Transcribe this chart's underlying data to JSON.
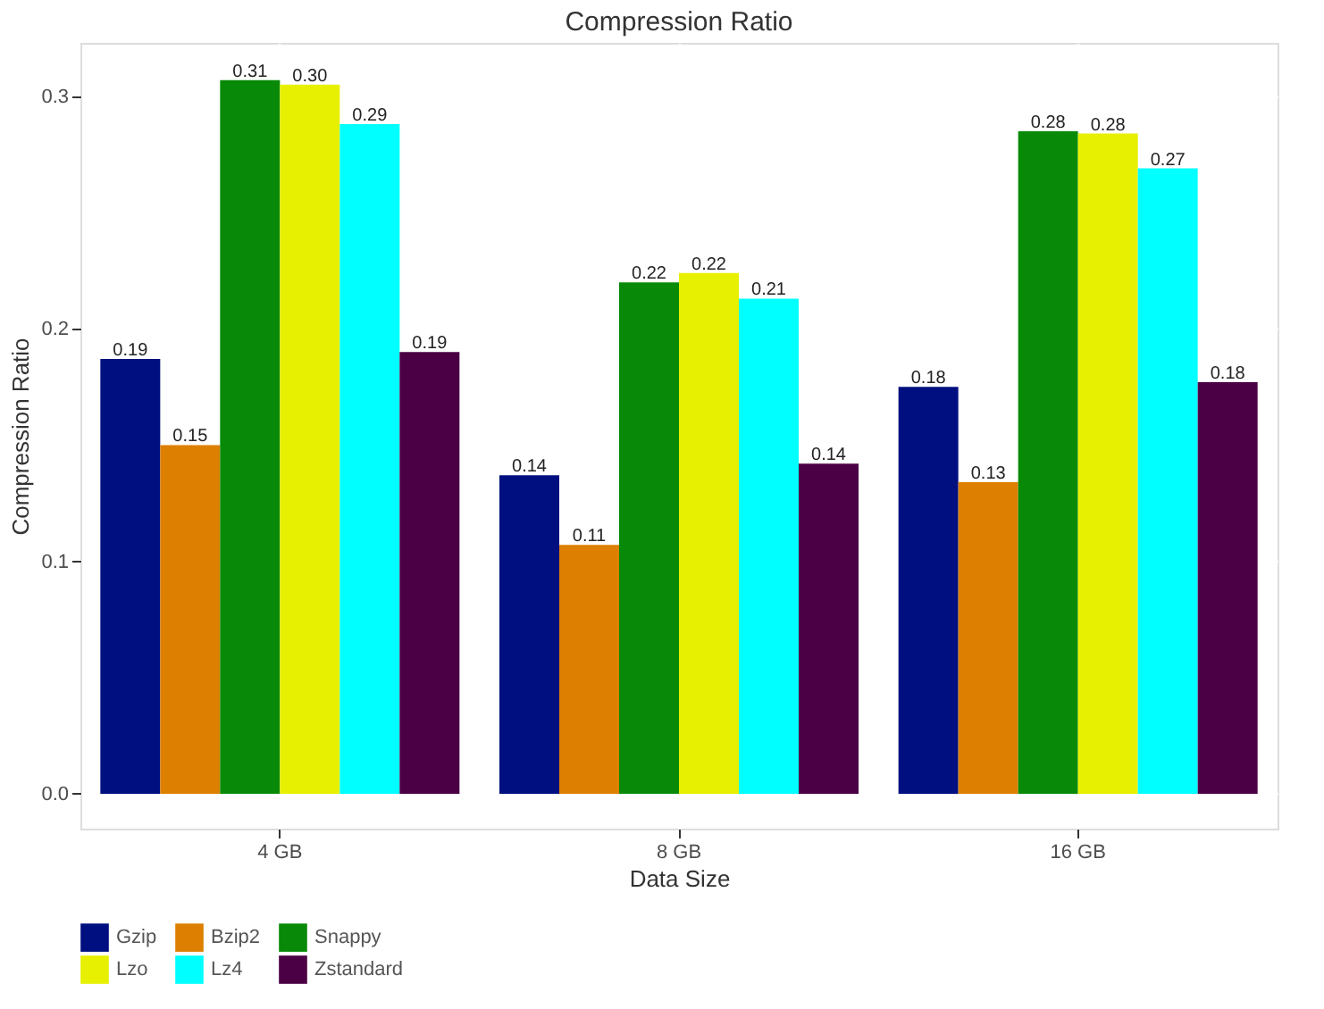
{
  "chart_data": {
    "type": "bar",
    "title": "Compression Ratio",
    "xlabel": "Data Size",
    "ylabel": "Compression Ratio",
    "categories": [
      "4 GB",
      "8 GB",
      "16 GB"
    ],
    "series": [
      {
        "name": "Gzip",
        "color": "#000f7f",
        "values": [
          0.187,
          0.137,
          0.175
        ],
        "value_labels": [
          "0.19",
          "0.14",
          "0.18"
        ]
      },
      {
        "name": "Bzip2",
        "color": "#dd7f00",
        "values": [
          0.15,
          0.107,
          0.134
        ],
        "value_labels": [
          "0.15",
          "0.11",
          "0.13"
        ]
      },
      {
        "name": "Snappy",
        "color": "#088a08",
        "values": [
          0.307,
          0.22,
          0.285
        ],
        "value_labels": [
          "0.31",
          "0.22",
          "0.28"
        ]
      },
      {
        "name": "Lzo",
        "color": "#e6f000",
        "values": [
          0.305,
          0.224,
          0.284
        ],
        "value_labels": [
          "0.30",
          "0.22",
          "0.28"
        ]
      },
      {
        "name": "Lz4",
        "color": "#00ffff",
        "values": [
          0.288,
          0.213,
          0.269
        ],
        "value_labels": [
          "0.29",
          "0.21",
          "0.27"
        ]
      },
      {
        "name": "Zstandard",
        "color": "#4b0045",
        "values": [
          0.19,
          0.142,
          0.177
        ],
        "value_labels": [
          "0.19",
          "0.14",
          "0.18"
        ]
      }
    ],
    "ylim": [
      -0.015,
      0.323
    ],
    "yticks": [
      {
        "value": 0,
        "label": "0.0"
      },
      0.1,
      0.2,
      0.3
    ],
    "grid": true,
    "legend": "bottom"
  }
}
